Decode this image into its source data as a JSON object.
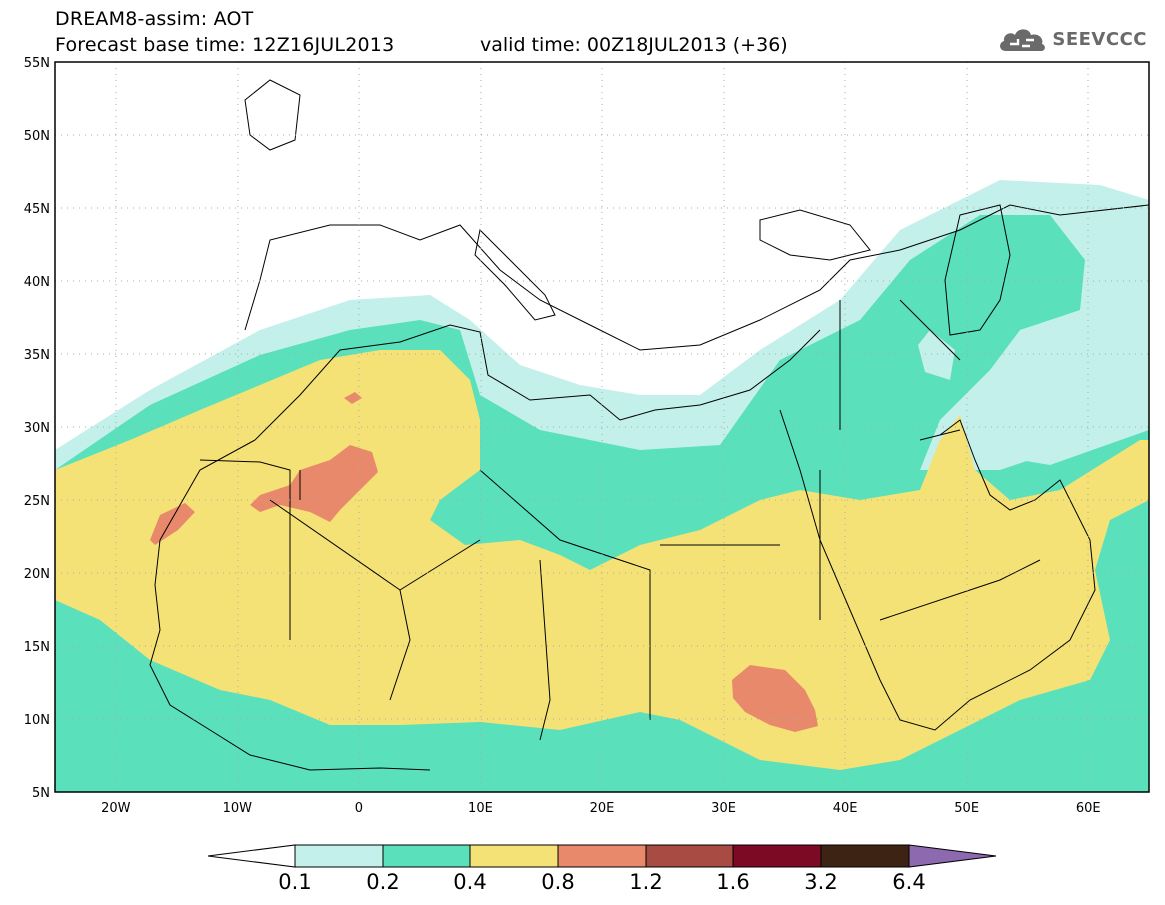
{
  "title": {
    "line1": "DREAM8-assim: AOT",
    "base": "Forecast base time: 12Z16JUL2013",
    "valid": "valid time: 00Z18JUL2013 (+36)"
  },
  "logo": {
    "icon": "cloud-logo-icon",
    "text": "SEEVCCC"
  },
  "map": {
    "lat_labels": [
      "55N",
      "50N",
      "45N",
      "40N",
      "35N",
      "30N",
      "25N",
      "20N",
      "15N",
      "10N",
      "5N"
    ],
    "lon_labels": [
      "20W",
      "10W",
      "0",
      "10E",
      "20E",
      "30E",
      "40E",
      "50E",
      "60E"
    ],
    "extent": {
      "lon_min": -25,
      "lon_max": 65,
      "lat_min": 5,
      "lat_max": 55
    }
  },
  "colorbar": {
    "labels": [
      "0.1",
      "0.2",
      "0.4",
      "0.8",
      "1.2",
      "1.6",
      "3.2",
      "6.4"
    ],
    "colors": [
      "#c3f0ea",
      "#5ae0bb",
      "#f5e276",
      "#e8896b",
      "#a84b42",
      "#7c0a24",
      "#3c2314",
      "#8d69b0"
    ],
    "under_color": "#ffffff"
  },
  "legend_colors": {
    "aot_0_1_0_2": "#c3f0ea",
    "aot_0_2_0_4": "#5ae0bb",
    "aot_0_4_0_8": "#f5e276",
    "aot_0_8_1_2": "#e8896b"
  }
}
